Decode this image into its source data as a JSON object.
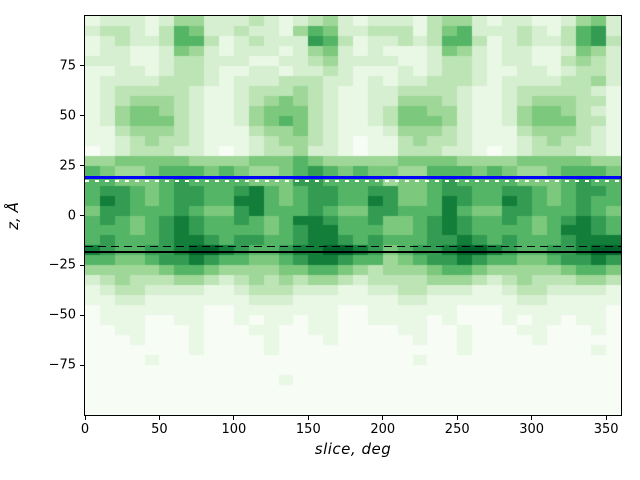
{
  "figure": {
    "background": "#ffffff",
    "title": ""
  },
  "chart_data": {
    "type": "heatmap",
    "title": "",
    "xlabel": "slice, deg",
    "ylabel": "z, Å",
    "xlim": [
      0,
      360
    ],
    "ylim": [
      -100,
      100
    ],
    "xticks": [
      0,
      50,
      100,
      150,
      200,
      250,
      300,
      350
    ],
    "xtick_labels": [
      "0",
      "50",
      "100",
      "150",
      "200",
      "250",
      "300",
      "350"
    ],
    "yticks": [
      75,
      50,
      25,
      0,
      -25,
      -50,
      -75
    ],
    "ytick_labels": [
      "75",
      "50",
      "25",
      "0",
      "−25",
      "−50",
      "−75"
    ],
    "grid": "off",
    "legend": "none",
    "colormap": "Greens",
    "palette": [
      "#f7fcf5",
      "#e9f7e5",
      "#d6efd0",
      "#bce4b5",
      "#9ed798",
      "#7cc87c",
      "#55b567",
      "#339c52",
      "#137e3a",
      "#026029"
    ],
    "cell_deg": 10,
    "cell_angstrom": 5,
    "z_top": 100,
    "grid_levels": [
      "122212442223212342122213442122112452",
      "233213652232214652233313562223213672",
      "123223663123222763122323663123223673",
      "122112542122212452121112542122112542",
      "222112332221122342222112332122113432",
      "112212332112212232111212332112212332",
      "122223332122233322121223332122223342",
      "123333321123334321122333321123333321",
      "123444321123454321122444321123444331",
      "124554321124555321123554421124554321",
      "124555321124565321123555421124555331",
      "113444321113445321112444321113444321",
      "112343321112344321011343321112343321",
      "012333221012334221011333221012333221",
      "445555544445556544444555544445555544",
      "654456665654456765655446665654456665",
      "665556766665557766664556766665556766",
      "677656776678656776677556776677656776",
      "687656776688656776687556876687656766",
      "577666765578666765577666865577666765",
      "676567876676568876675567876676567876",
      "666567876666567886665567876666568876",
      "676667887677667887676667787676667888",
      "876677899876678899875677899876677899",
      "665567787665567887664567787665567787",
      "444445665444455665434445665444445665",
      "234333443234343443233334443234333443",
      "123322221123332221122332221123322221",
      "112211111112221111111221111112211111",
      "011111110011111110011111100011111110",
      "011100110010110110011110100010110110",
      "001100010001100110000110010001100010",
      "000100010000100010000010010000100000",
      "000000010000100000000000010000000010",
      "000010000000000000000010000000000000",
      "000000000000000000000000000000000000",
      "000000000000010000000000000000000000",
      "000000000000000000000000000000000000",
      "000000000000000000000000000000000000",
      "000000000000000000000000000000000000"
    ],
    "hlines": [
      {
        "name": "blue-solid",
        "z": 19.0,
        "color": "#0000ff",
        "style": "solid",
        "width": 3,
        "dash": null
      },
      {
        "name": "white-dashed",
        "z": 17.4,
        "color": "#ffffff",
        "style": "dashed",
        "width": 1.6,
        "dash": [
          4,
          6
        ]
      },
      {
        "name": "black-dashed",
        "z": -15.5,
        "color": "#000000",
        "style": "dashed",
        "width": 1.8,
        "dash": [
          8,
          5
        ]
      },
      {
        "name": "black-solid",
        "z": -18.3,
        "color": "#000000",
        "style": "solid",
        "width": 1.8,
        "dash": null
      }
    ]
  }
}
